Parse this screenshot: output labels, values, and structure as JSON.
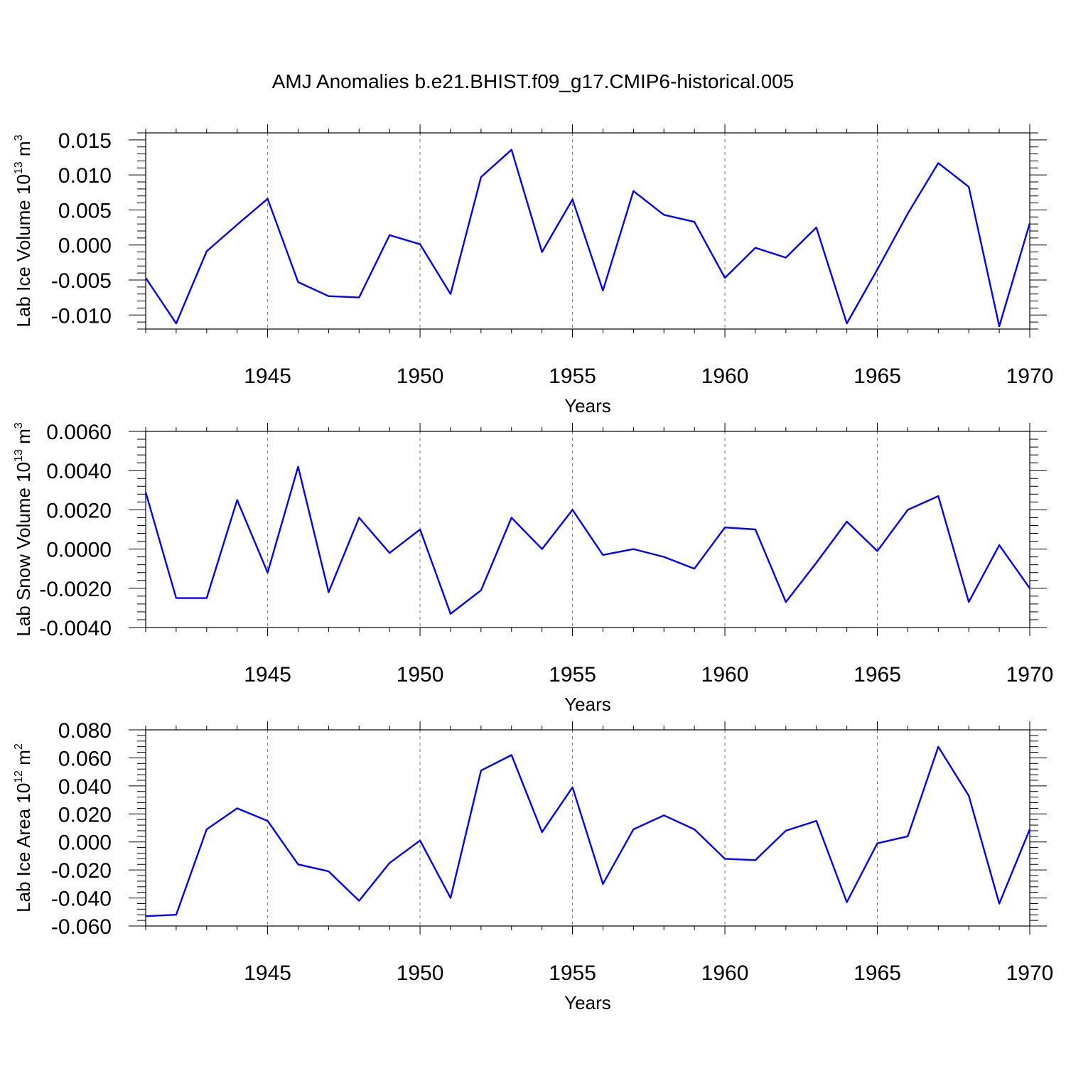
{
  "figure_title": "AMJ Anomalies b.e21.BHIST.f09_g17.CMIP6-historical.005",
  "colors": {
    "series": "#0000ff",
    "grid": "#777777",
    "axis": "#000000"
  },
  "chart_data": [
    {
      "type": "line",
      "title": "AMJ Anomalies b.e21.BHIST.f09_g17.CMIP6-historical.005",
      "ylabel_main": "Lab Ice Volume 10",
      "ylabel_exp": "13",
      "ylabel_unit": " m",
      "ylabel_unit_exp": "3",
      "xlabel": "Years",
      "xlim": [
        1941,
        1970
      ],
      "ylim": [
        -0.012,
        0.016
      ],
      "yticks": [
        -0.01,
        -0.005,
        0.0,
        0.005,
        0.01,
        0.015
      ],
      "ytick_labels": [
        "-0.010",
        "-0.005",
        "0.000",
        "0.005",
        "0.010",
        "0.015"
      ],
      "xticks": [
        1945,
        1950,
        1955,
        1960,
        1965,
        1970
      ],
      "xtick_labels": [
        "1945",
        "1950",
        "1955",
        "1960",
        "1965",
        "1970"
      ],
      "x": [
        1941,
        1942,
        1943,
        1944,
        1945,
        1946,
        1947,
        1948,
        1949,
        1950,
        1951,
        1952,
        1953,
        1954,
        1955,
        1956,
        1957,
        1958,
        1959,
        1960,
        1961,
        1962,
        1963,
        1964,
        1965,
        1966,
        1967,
        1968,
        1969,
        1970
      ],
      "values": [
        -0.0047,
        -0.0112,
        -0.0009,
        0.0029,
        0.0066,
        -0.0053,
        -0.0073,
        -0.0075,
        0.0014,
        0.0001,
        -0.007,
        0.0097,
        0.0136,
        -0.001,
        0.0065,
        -0.0065,
        0.0077,
        0.0043,
        0.0033,
        -0.0047,
        -0.0004,
        -0.0018,
        0.0025,
        -0.0112,
        -0.0035,
        0.0045,
        0.0117,
        0.0083,
        -0.0116,
        0.0031
      ]
    },
    {
      "type": "line",
      "ylabel_main": "Lab Snow Volume 10",
      "ylabel_exp": "13",
      "ylabel_unit": " m",
      "ylabel_unit_exp": "3",
      "xlabel": "Years",
      "xlim": [
        1941,
        1970
      ],
      "ylim": [
        -0.004,
        0.006
      ],
      "yticks": [
        -0.004,
        -0.002,
        0.0,
        0.002,
        0.004,
        0.006
      ],
      "ytick_labels": [
        "-0.0040",
        "-0.0020",
        "0.0000",
        "0.0020",
        "0.0040",
        "0.0060"
      ],
      "xticks": [
        1945,
        1950,
        1955,
        1960,
        1965,
        1970
      ],
      "xtick_labels": [
        "1945",
        "1950",
        "1955",
        "1960",
        "1965",
        "1970"
      ],
      "x": [
        1941,
        1942,
        1943,
        1944,
        1945,
        1946,
        1947,
        1948,
        1949,
        1950,
        1951,
        1952,
        1953,
        1954,
        1955,
        1956,
        1957,
        1958,
        1959,
        1960,
        1961,
        1962,
        1963,
        1964,
        1965,
        1966,
        1967,
        1968,
        1969,
        1970
      ],
      "values": [
        0.0029,
        -0.0025,
        -0.0025,
        0.0025,
        -0.0012,
        0.0042,
        -0.0022,
        0.0016,
        -0.0002,
        0.001,
        -0.0033,
        -0.0021,
        0.0016,
        0.0,
        0.002,
        -0.0003,
        0.0,
        -0.0004,
        -0.001,
        0.0011,
        0.001,
        -0.0027,
        -0.0007,
        0.0014,
        -0.0001,
        0.002,
        0.0027,
        -0.0027,
        0.0002,
        -0.002
      ]
    },
    {
      "type": "line",
      "ylabel_main": "Lab Ice Area 10",
      "ylabel_exp": "12",
      "ylabel_unit": " m",
      "ylabel_unit_exp": "2",
      "xlabel": "Years",
      "xlim": [
        1941,
        1970
      ],
      "ylim": [
        -0.06,
        0.08
      ],
      "yticks": [
        -0.06,
        -0.04,
        -0.02,
        0.0,
        0.02,
        0.04,
        0.06,
        0.08
      ],
      "ytick_labels": [
        "-0.060",
        "-0.040",
        "-0.020",
        "0.000",
        "0.020",
        "0.040",
        "0.060",
        "0.080"
      ],
      "xticks": [
        1945,
        1950,
        1955,
        1960,
        1965,
        1970
      ],
      "xtick_labels": [
        "1945",
        "1950",
        "1955",
        "1960",
        "1965",
        "1970"
      ],
      "x": [
        1941,
        1942,
        1943,
        1944,
        1945,
        1946,
        1947,
        1948,
        1949,
        1950,
        1951,
        1952,
        1953,
        1954,
        1955,
        1956,
        1957,
        1958,
        1959,
        1960,
        1961,
        1962,
        1963,
        1964,
        1965,
        1966,
        1967,
        1968,
        1969,
        1970
      ],
      "values": [
        -0.053,
        -0.052,
        0.009,
        0.024,
        0.015,
        -0.016,
        -0.021,
        -0.042,
        -0.015,
        0.001,
        -0.04,
        0.051,
        0.062,
        0.007,
        0.039,
        -0.03,
        0.009,
        0.019,
        0.009,
        -0.012,
        -0.013,
        0.008,
        0.015,
        -0.043,
        -0.001,
        0.004,
        0.068,
        0.033,
        -0.044,
        0.009
      ]
    }
  ]
}
